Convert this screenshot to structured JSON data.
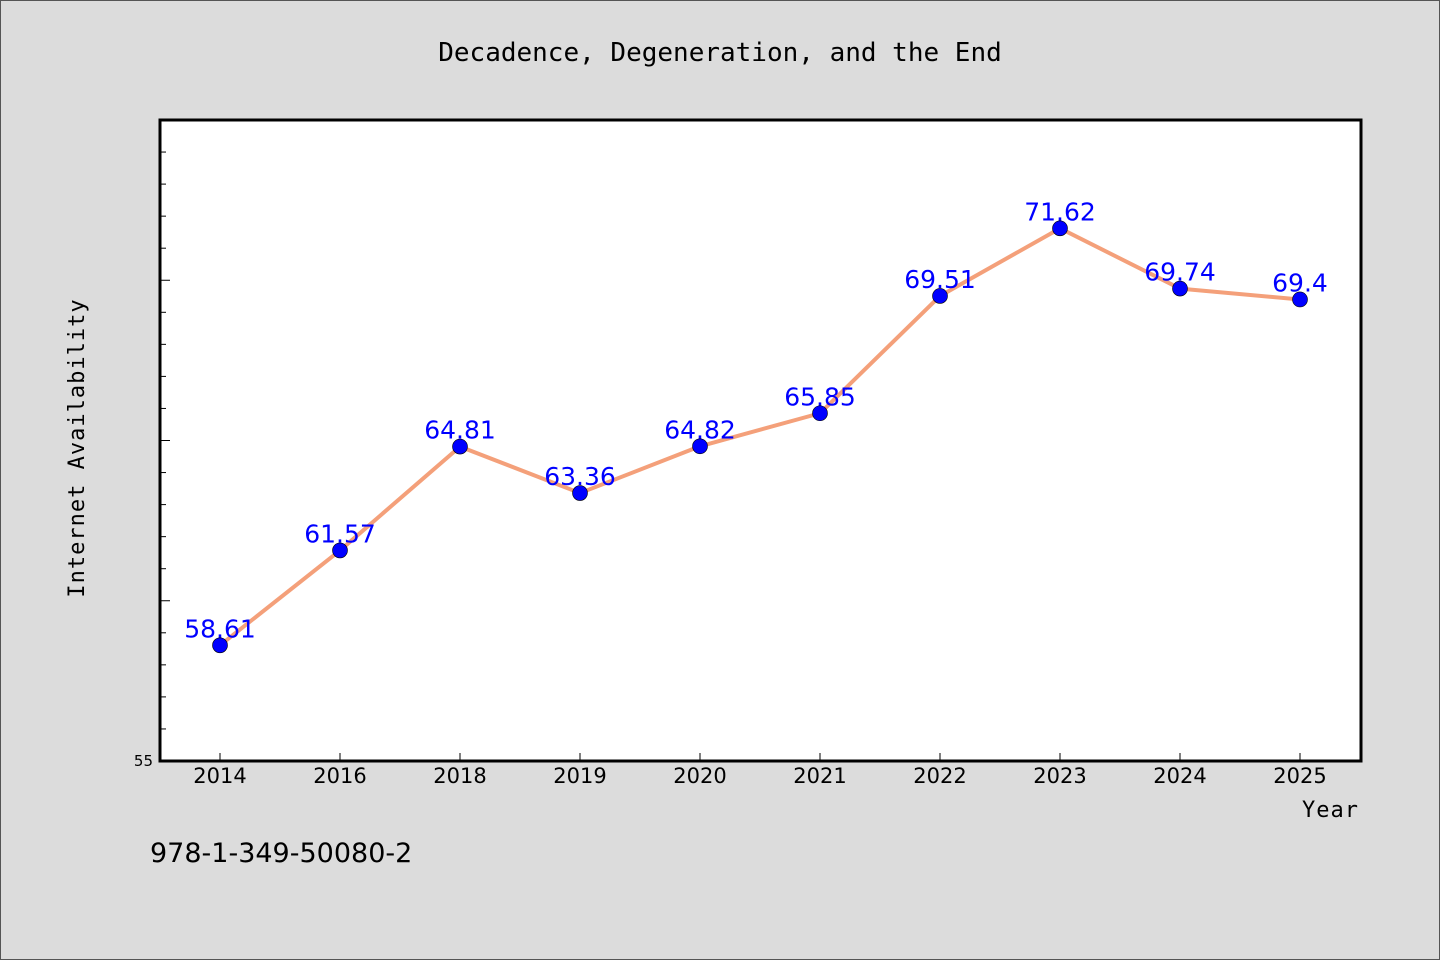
{
  "chart_data": {
    "type": "line",
    "title": "Decadence, Degeneration, and the End",
    "xlabel": "Year",
    "ylabel": "Internet Availability",
    "categories": [
      "2014",
      "2016",
      "2018",
      "2019",
      "2020",
      "2021",
      "2022",
      "2023",
      "2024",
      "2025"
    ],
    "series": [
      {
        "values": [
          58.61,
          61.57,
          64.81,
          63.36,
          64.82,
          65.85,
          69.51,
          71.62,
          69.74,
          69.4
        ],
        "labels": [
          "58.61",
          "61.57",
          "64.81",
          "63.36",
          "64.82",
          "65.85",
          "69.51",
          "71.62",
          "69.74",
          "69.4"
        ],
        "line_color": "#f4a07a",
        "marker_color": "#0000ff"
      }
    ],
    "ylim": [
      55,
      75
    ],
    "ytick_label_shown": "55",
    "legend": "none",
    "grid": false
  },
  "footer_text": "978-1-349-50080-2",
  "colors": {
    "background": "#dcdcdc",
    "plot_background": "#ffffff",
    "line": "#f4a07a",
    "marker": "#0000ff",
    "data_label": "#0000ff"
  }
}
